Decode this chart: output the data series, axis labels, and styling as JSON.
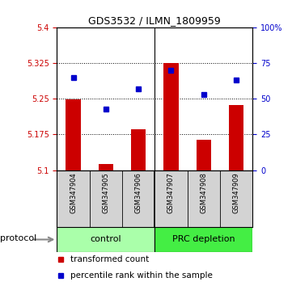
{
  "title": "GDS3532 / ILMN_1809959",
  "samples": [
    "GSM347904",
    "GSM347905",
    "GSM347906",
    "GSM347907",
    "GSM347908",
    "GSM347909"
  ],
  "red_values": [
    5.248,
    5.113,
    5.185,
    5.325,
    5.163,
    5.237
  ],
  "blue_values": [
    65,
    43,
    57,
    70,
    53,
    63
  ],
  "ylim_left": [
    5.1,
    5.4
  ],
  "ylim_right": [
    0,
    100
  ],
  "yticks_left": [
    5.1,
    5.175,
    5.25,
    5.325,
    5.4
  ],
  "yticks_right": [
    0,
    25,
    50,
    75,
    100
  ],
  "ytick_labels_left": [
    "5.1",
    "5.175",
    "5.25",
    "5.325",
    "5.4"
  ],
  "ytick_labels_right": [
    "0",
    "25",
    "50",
    "75",
    "100%"
  ],
  "bar_color": "#cc0000",
  "marker_color": "#0000cc",
  "bar_baseline": 5.1,
  "groups": [
    {
      "label": "control",
      "color": "#aaffaa"
    },
    {
      "label": "PRC depletion",
      "color": "#44ee44"
    }
  ],
  "sample_row_bg": "#d3d3d3",
  "protocol_label": "protocol",
  "legend_red": "transformed count",
  "legend_blue": "percentile rank within the sample",
  "background_color": "#ffffff"
}
